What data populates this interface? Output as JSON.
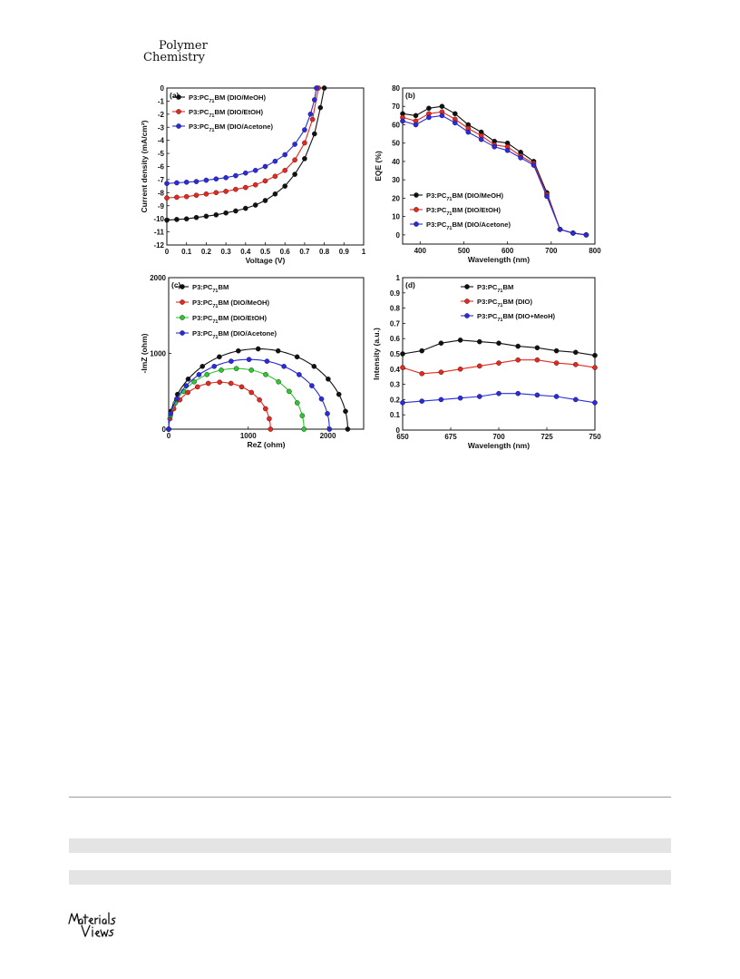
{
  "journal": {
    "line1": "Polymer",
    "line2": "Chemistry"
  },
  "logo_text": "MaterialsViews",
  "chart_data": [
    {
      "id": "a",
      "type": "line",
      "panel_label": "(a)",
      "xlabel": "Voltage (V)",
      "ylabel": "Current density (mA/cm²)",
      "xlim": [
        0.0,
        1.0
      ],
      "ylim": [
        -12,
        0
      ],
      "xticks": [
        0.0,
        0.1,
        0.2,
        0.3,
        0.4,
        0.5,
        0.6,
        0.7,
        0.8,
        0.9,
        1.0
      ],
      "yticks": [
        0,
        -1,
        -2,
        -3,
        -4,
        -5,
        -6,
        -7,
        -8,
        -9,
        -10,
        -11,
        -12
      ],
      "legend": "top-left",
      "series": [
        {
          "name": "P3:PC71BM (DIO/MeOH)",
          "color": "#111111",
          "x": [
            0.0,
            0.05,
            0.1,
            0.15,
            0.2,
            0.25,
            0.3,
            0.35,
            0.4,
            0.45,
            0.5,
            0.55,
            0.6,
            0.65,
            0.7,
            0.75,
            0.78,
            0.8
          ],
          "y": [
            -10.1,
            -10.05,
            -10.0,
            -9.9,
            -9.8,
            -9.7,
            -9.55,
            -9.4,
            -9.2,
            -8.95,
            -8.6,
            -8.1,
            -7.5,
            -6.6,
            -5.4,
            -3.5,
            -1.5,
            0.0
          ]
        },
        {
          "name": "P3:PC71BM (DIO/EtOH)",
          "color": "#e8281e",
          "x": [
            0.0,
            0.05,
            0.1,
            0.15,
            0.2,
            0.25,
            0.3,
            0.35,
            0.4,
            0.45,
            0.5,
            0.55,
            0.6,
            0.65,
            0.7,
            0.74,
            0.77
          ],
          "y": [
            -8.4,
            -8.35,
            -8.3,
            -8.2,
            -8.1,
            -8.0,
            -7.9,
            -7.75,
            -7.6,
            -7.4,
            -7.1,
            -6.75,
            -6.3,
            -5.5,
            -4.2,
            -2.4,
            0.0
          ]
        },
        {
          "name": "P3:PC71BM (DIO/Acetone)",
          "color": "#2a2ae0",
          "x": [
            0.0,
            0.05,
            0.1,
            0.15,
            0.2,
            0.25,
            0.3,
            0.35,
            0.4,
            0.45,
            0.5,
            0.55,
            0.6,
            0.65,
            0.7,
            0.73,
            0.75,
            0.76
          ],
          "y": [
            -7.3,
            -7.25,
            -7.2,
            -7.15,
            -7.05,
            -6.95,
            -6.85,
            -6.7,
            -6.5,
            -6.3,
            -6.0,
            -5.6,
            -5.1,
            -4.3,
            -3.2,
            -2.0,
            -0.9,
            0.0
          ]
        }
      ]
    },
    {
      "id": "b",
      "type": "line",
      "panel_label": "(b)",
      "xlabel": "Wavelength (nm)",
      "ylabel": "EQE (%)",
      "xlim": [
        360,
        800
      ],
      "ylim": [
        -5,
        80
      ],
      "xticks": [
        400,
        500,
        600,
        700,
        800
      ],
      "yticks": [
        0,
        10,
        20,
        30,
        40,
        50,
        60,
        70,
        80
      ],
      "legend": "bottom-left",
      "series": [
        {
          "name": "P3:PC71BM (DIO/MeOH)",
          "color": "#111111",
          "x": [
            360,
            390,
            420,
            450,
            480,
            510,
            540,
            570,
            600,
            630,
            660,
            690,
            720,
            750,
            780
          ],
          "y": [
            66,
            65,
            69,
            70,
            66,
            60,
            56,
            51,
            50,
            45,
            40,
            23,
            3,
            1,
            0
          ]
        },
        {
          "name": "P3:PC71BM (DIO/EtOH)",
          "color": "#e8281e",
          "x": [
            360,
            390,
            420,
            450,
            480,
            510,
            540,
            570,
            600,
            630,
            660,
            690,
            720,
            750,
            780
          ],
          "y": [
            64,
            62,
            66,
            67,
            63,
            58,
            54,
            49,
            48,
            43,
            39,
            22,
            3,
            1,
            0
          ]
        },
        {
          "name": "P3:PC71BM (DIO/Acetone)",
          "color": "#2a2ae0",
          "x": [
            360,
            390,
            420,
            450,
            480,
            510,
            540,
            570,
            600,
            630,
            660,
            690,
            720,
            750,
            780
          ],
          "y": [
            62,
            60,
            64,
            65,
            61,
            56,
            52,
            48,
            46,
            42,
            38,
            21,
            3,
            1,
            0
          ]
        }
      ]
    },
    {
      "id": "c",
      "type": "scatter",
      "panel_label": "(c)",
      "xlabel": "ReZ (ohm)",
      "ylabel": "-ImZ (ohm)",
      "xlim": [
        0,
        2450
      ],
      "ylim": [
        0,
        2000
      ],
      "xticks": [
        0,
        1000,
        2000
      ],
      "yticks": [
        0,
        1000,
        2000
      ],
      "legend": "top-left",
      "series": [
        {
          "name": "P3:PC71BM",
          "color": "#111111",
          "r_total": 2250,
          "peak": 1060
        },
        {
          "name": "P3:PC71BM (DIO/MeOH)",
          "color": "#e8281e",
          "r_total": 1280,
          "peak": 620
        },
        {
          "name": "P3:PC71BM (DIO/EtOH)",
          "color": "#2ec82e",
          "r_total": 1700,
          "peak": 800
        },
        {
          "name": "P3:PC71BM (DIO/Acetone)",
          "color": "#2a2ae0",
          "r_total": 2020,
          "peak": 920
        }
      ]
    },
    {
      "id": "d",
      "type": "line",
      "panel_label": "(d)",
      "xlabel": "Wavelength (nm)",
      "ylabel": "Intensity (a.u.)",
      "xlim": [
        650,
        750
      ],
      "ylim": [
        0.0,
        1.0
      ],
      "xticks": [
        650,
        675,
        700,
        725,
        750
      ],
      "yticks": [
        0.0,
        0.1,
        0.2,
        0.3,
        0.4,
        0.5,
        0.6,
        0.7,
        0.8,
        0.9,
        1.0
      ],
      "legend": "top-center",
      "series": [
        {
          "name": "P3:PC71BM",
          "color": "#111111",
          "x": [
            650,
            660,
            670,
            680,
            690,
            700,
            710,
            720,
            730,
            740,
            750
          ],
          "y": [
            0.5,
            0.52,
            0.57,
            0.59,
            0.58,
            0.57,
            0.55,
            0.54,
            0.52,
            0.51,
            0.49
          ]
        },
        {
          "name": "P3:PC71BM (DIO)",
          "color": "#e8281e",
          "x": [
            650,
            660,
            670,
            680,
            690,
            700,
            710,
            720,
            730,
            740,
            750
          ],
          "y": [
            0.41,
            0.37,
            0.38,
            0.4,
            0.42,
            0.44,
            0.46,
            0.46,
            0.44,
            0.43,
            0.41
          ]
        },
        {
          "name": "P3:PC71BM (DIO+MeoH)",
          "color": "#2a2ae0",
          "x": [
            650,
            660,
            670,
            680,
            690,
            700,
            710,
            720,
            730,
            740,
            750
          ],
          "y": [
            0.18,
            0.19,
            0.2,
            0.21,
            0.22,
            0.24,
            0.24,
            0.23,
            0.22,
            0.2,
            0.18
          ]
        }
      ]
    }
  ]
}
